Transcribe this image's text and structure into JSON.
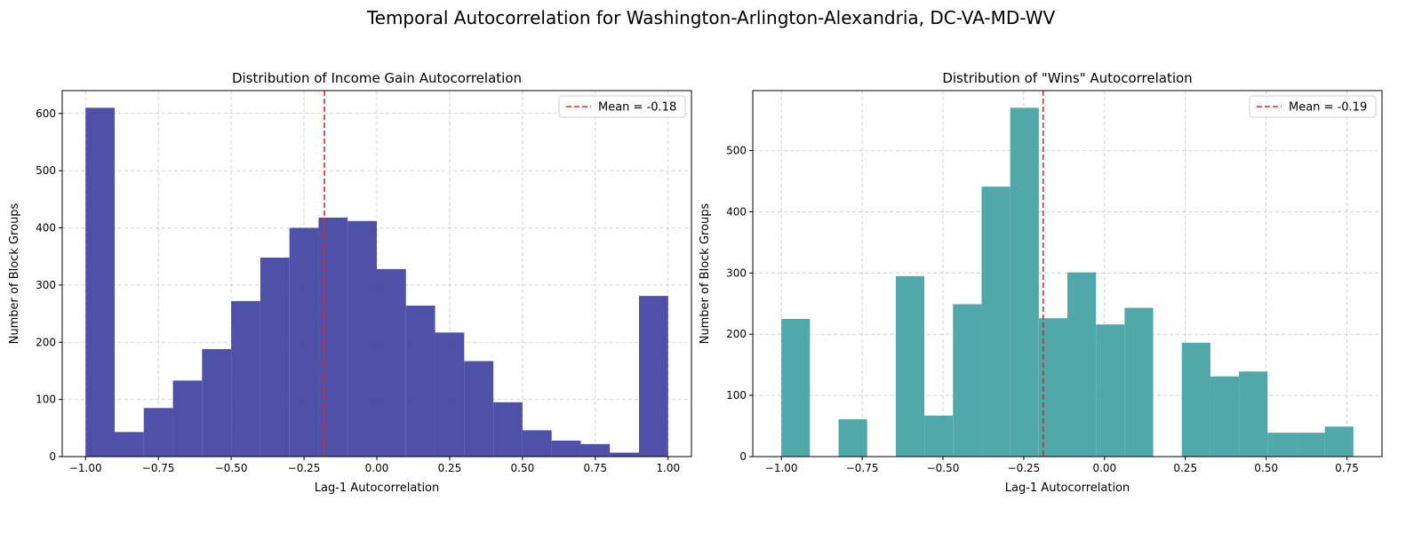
{
  "figure": {
    "title": "Temporal Autocorrelation for Washington-Arlington-Alexandria, DC-VA-MD-WV"
  },
  "chart_data": [
    {
      "type": "bar",
      "title": "Distribution of Income Gain Autocorrelation",
      "xlabel": "Lag-1 Autocorrelation",
      "ylabel": "Number of Block Groups",
      "xlim": [
        -1.08,
        1.08
      ],
      "ylim": [
        0,
        640
      ],
      "xticks": [
        -1.0,
        -0.75,
        -0.5,
        -0.25,
        0.0,
        0.25,
        0.5,
        0.75,
        1.0
      ],
      "xtick_labels": [
        "−1.00",
        "−0.75",
        "−0.50",
        "−0.25",
        "0.00",
        "0.25",
        "0.50",
        "0.75",
        "1.00"
      ],
      "yticks": [
        0,
        100,
        200,
        300,
        400,
        500,
        600
      ],
      "ytick_labels": [
        "0",
        "100",
        "200",
        "300",
        "400",
        "500",
        "600"
      ],
      "bin_edges": [
        -1.0,
        -0.9,
        -0.8,
        -0.7,
        -0.6,
        -0.5,
        -0.4,
        -0.3,
        -0.2,
        -0.1,
        0.0,
        0.1,
        0.2,
        0.3,
        0.4,
        0.5,
        0.6,
        0.7,
        0.8,
        0.9,
        1.0
      ],
      "counts": [
        610,
        43,
        85,
        133,
        188,
        272,
        348,
        400,
        418,
        412,
        328,
        264,
        217,
        167,
        95,
        46,
        28,
        22,
        7,
        281
      ],
      "bar_color": "#4b4ea7",
      "mean": -0.18,
      "mean_label": "Mean = -0.18",
      "mean_color": "#e8261f",
      "grid": true,
      "legend_position": "upper right"
    },
    {
      "type": "bar",
      "title": "Distribution of \"Wins\" Autocorrelation",
      "xlabel": "Lag-1 Autocorrelation",
      "ylabel": "Number of Block Groups",
      "xlim": [
        -1.0885,
        0.8585
      ],
      "ylim": [
        0,
        598
      ],
      "xticks": [
        -1.0,
        -0.75,
        -0.5,
        -0.25,
        0.0,
        0.25,
        0.5,
        0.75
      ],
      "xtick_labels": [
        "−1.00",
        "−0.75",
        "−0.50",
        "−0.25",
        "0.00",
        "0.25",
        "0.50",
        "0.75"
      ],
      "yticks": [
        0,
        100,
        200,
        300,
        400,
        500
      ],
      "ytick_labels": [
        "0",
        "100",
        "200",
        "300",
        "400",
        "500"
      ],
      "bin_edges": [
        -1.0,
        -0.9115,
        -0.823,
        -0.7345,
        -0.646,
        -0.5575,
        -0.469,
        -0.3805,
        -0.292,
        -0.2035,
        -0.115,
        -0.0265,
        0.062,
        0.1505,
        0.239,
        0.3275,
        0.416,
        0.5045,
        0.593,
        0.6815,
        0.77
      ],
      "counts": [
        225,
        0,
        61,
        0,
        295,
        67,
        249,
        441,
        570,
        226,
        301,
        216,
        243,
        0,
        186,
        131,
        139,
        39,
        39,
        49
      ],
      "bar_color": "#4ca6a6",
      "mean": -0.19,
      "mean_label": "Mean = -0.19",
      "mean_color": "#e8261f",
      "grid": true,
      "legend_position": "upper right"
    }
  ]
}
